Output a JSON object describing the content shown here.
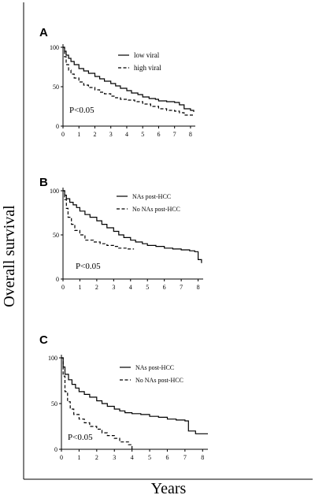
{
  "figure": {
    "ylabel": "Overall survival",
    "xlabel": "Years"
  },
  "chart_data": [
    {
      "type": "line",
      "panel": "A",
      "annotation": "P<0.05",
      "xlim": [
        0,
        8.3
      ],
      "ylim": [
        0,
        100
      ],
      "x_ticks": [
        "0",
        "1",
        "2",
        "3",
        "4",
        "5",
        "6",
        "7",
        "8"
      ],
      "y_ticks": [
        "0",
        "50",
        "100"
      ],
      "legend_position": "top-right",
      "series": [
        {
          "name": "low viral",
          "style": "solid",
          "x": [
            0,
            0.1,
            0.2,
            0.35,
            0.5,
            0.7,
            1,
            1.3,
            1.6,
            2,
            2.3,
            2.6,
            3,
            3.3,
            3.6,
            4,
            4.3,
            4.7,
            5,
            5.4,
            5.8,
            6,
            6.5,
            7,
            7.3,
            7.6,
            8,
            8.2
          ],
          "y": [
            100,
            95,
            90,
            86,
            82,
            78,
            73,
            70,
            67,
            63,
            60,
            57,
            54,
            51,
            48,
            45,
            42,
            40,
            37,
            35,
            34,
            32,
            31,
            30,
            27,
            22,
            20,
            18
          ]
        },
        {
          "name": "high viral",
          "style": "dashed",
          "x": [
            0,
            0.1,
            0.2,
            0.35,
            0.5,
            0.7,
            1,
            1.3,
            1.6,
            2,
            2.3,
            2.6,
            3,
            3.3,
            3.6,
            4,
            4.5,
            5,
            5.5,
            6,
            6.5,
            7,
            7.3,
            7.6,
            8,
            8.2
          ],
          "y": [
            100,
            88,
            78,
            71,
            66,
            61,
            56,
            52,
            49,
            46,
            43,
            41,
            38,
            36,
            34,
            33,
            31,
            28,
            25,
            22,
            20,
            19,
            17,
            14,
            14,
            14
          ]
        }
      ]
    },
    {
      "type": "line",
      "panel": "B",
      "annotation": "P<0.05",
      "xlim": [
        0,
        8.3
      ],
      "ylim": [
        0,
        100
      ],
      "x_ticks": [
        "0",
        "1",
        "2",
        "3",
        "4",
        "5",
        "6",
        "7",
        "8"
      ],
      "y_ticks": [
        "0",
        "50",
        "100"
      ],
      "legend_position": "top-right",
      "series": [
        {
          "name": "NAs post-HCC",
          "style": "solid",
          "x": [
            0,
            0.1,
            0.2,
            0.4,
            0.6,
            0.8,
            1,
            1.3,
            1.6,
            2,
            2.3,
            2.6,
            3,
            3.3,
            3.6,
            4,
            4.3,
            4.7,
            5,
            5.5,
            6,
            6.5,
            7,
            7.5,
            7.8,
            8,
            8.2
          ],
          "y": [
            100,
            95,
            91,
            87,
            84,
            81,
            77,
            73,
            70,
            66,
            62,
            58,
            54,
            50,
            47,
            44,
            42,
            40,
            38,
            37,
            35,
            34,
            33,
            32,
            31,
            22,
            18
          ]
        },
        {
          "name": "No NAs post-HCC",
          "style": "dashed",
          "x": [
            0,
            0.1,
            0.2,
            0.3,
            0.5,
            0.7,
            1,
            1.3,
            1.8,
            2.2,
            2.6,
            3,
            3.3,
            3.5,
            3.8,
            4.2
          ],
          "y": [
            100,
            90,
            80,
            70,
            62,
            55,
            50,
            44,
            42,
            40,
            38,
            37,
            35,
            35,
            34,
            34
          ]
        }
      ]
    },
    {
      "type": "line",
      "panel": "C",
      "annotation": "P<0.05",
      "xlim": [
        0,
        8.3
      ],
      "ylim": [
        0,
        100
      ],
      "x_ticks": [
        "0",
        "1",
        "2",
        "3",
        "4",
        "5",
        "6",
        "7",
        "8"
      ],
      "y_ticks": [
        "0",
        "50",
        "100"
      ],
      "legend_position": "top-right",
      "series": [
        {
          "name": "NAs post-HCC",
          "style": "solid",
          "x": [
            0,
            0.1,
            0.2,
            0.4,
            0.6,
            0.8,
            1,
            1.3,
            1.6,
            2,
            2.3,
            2.6,
            3,
            3.3,
            3.6,
            4,
            4.5,
            5,
            5.5,
            6,
            6.5,
            7,
            7.2,
            7.6,
            8,
            8.3
          ],
          "y": [
            100,
            90,
            82,
            76,
            71,
            67,
            63,
            60,
            57,
            53,
            50,
            47,
            44,
            42,
            40,
            39,
            38,
            36,
            35,
            33,
            32,
            31,
            20,
            17,
            17,
            17
          ]
        },
        {
          "name": "No NAs post-HCC",
          "style": "dashed",
          "x": [
            0,
            0.1,
            0.2,
            0.35,
            0.5,
            0.7,
            1,
            1.3,
            1.6,
            2,
            2.3,
            2.6,
            3,
            3.3,
            3.6,
            3.8,
            4
          ],
          "y": [
            100,
            80,
            63,
            52,
            44,
            38,
            33,
            29,
            25,
            22,
            18,
            15,
            12,
            8,
            8,
            5,
            0
          ]
        }
      ]
    }
  ]
}
